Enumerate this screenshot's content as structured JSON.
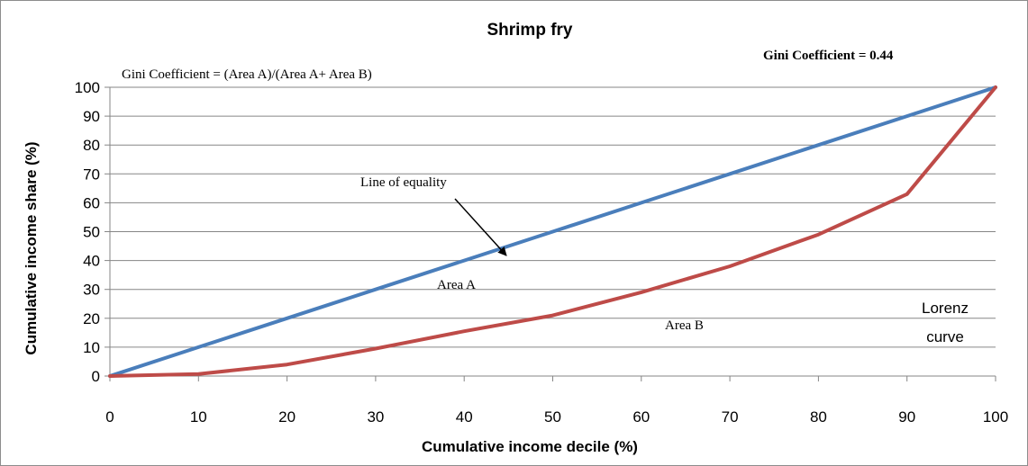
{
  "chart_data": {
    "type": "line",
    "title": "Shrimp fry",
    "xlabel": "Cumulative income decile (%)",
    "ylabel": "Cumulative income share (%)",
    "xlim": [
      0,
      100
    ],
    "ylim": [
      0,
      100
    ],
    "x_ticks": [
      "0",
      "10",
      "20",
      "30",
      "40",
      "50",
      "60",
      "70",
      "80",
      "90",
      "100"
    ],
    "y_ticks": [
      "0",
      "10",
      "20",
      "30",
      "40",
      "50",
      "60",
      "70",
      "80",
      "90",
      "100"
    ],
    "grid": "horizontal",
    "x": [
      0,
      10,
      20,
      30,
      40,
      50,
      60,
      70,
      80,
      90,
      100
    ],
    "series": [
      {
        "values": [
          0,
          10,
          20,
          30,
          40,
          50,
          60,
          70,
          80,
          90,
          100
        ],
        "color": "#4a7ebb"
      },
      {
        "values": [
          0,
          0.7,
          4,
          9.5,
          15.5,
          21,
          29,
          38,
          49,
          63,
          100
        ],
        "color": "#be4b48"
      }
    ],
    "annotations": {
      "gini_formula": "Gini Coefficient = (Area A)/(Area A+ Area B)",
      "gini_value": "Gini Coefficient = 0.44",
      "line_of_equality": "Line of equality",
      "area_a": "Area A",
      "area_b": "Area B",
      "lorenz_line1": "Lorenz",
      "lorenz_line2": "curve"
    }
  }
}
